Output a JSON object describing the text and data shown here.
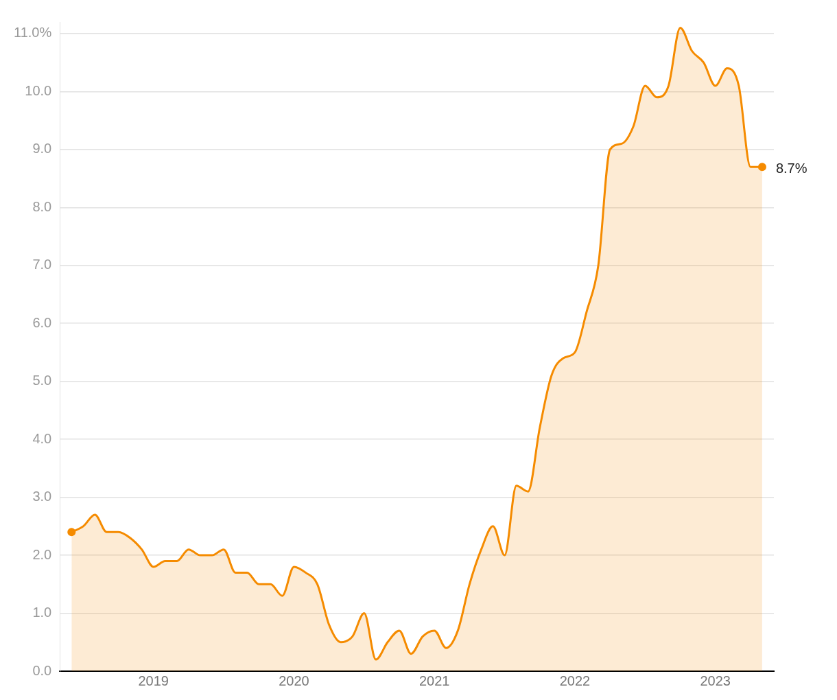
{
  "chart_data": {
    "type": "area",
    "x": [
      "2018-06",
      "2018-07",
      "2018-08",
      "2018-09",
      "2018-10",
      "2018-11",
      "2018-12",
      "2019-01",
      "2019-02",
      "2019-03",
      "2019-04",
      "2019-05",
      "2019-06",
      "2019-07",
      "2019-08",
      "2019-09",
      "2019-10",
      "2019-11",
      "2019-12",
      "2020-01",
      "2020-02",
      "2020-03",
      "2020-04",
      "2020-05",
      "2020-06",
      "2020-07",
      "2020-08",
      "2020-09",
      "2020-10",
      "2020-11",
      "2020-12",
      "2021-01",
      "2021-02",
      "2021-03",
      "2021-04",
      "2021-05",
      "2021-06",
      "2021-07",
      "2021-08",
      "2021-09",
      "2021-10",
      "2021-11",
      "2021-12",
      "2022-01",
      "2022-02",
      "2022-03",
      "2022-04",
      "2022-05",
      "2022-06",
      "2022-07",
      "2022-08",
      "2022-09",
      "2022-10",
      "2022-11",
      "2022-12",
      "2023-01",
      "2023-02",
      "2023-03",
      "2023-04",
      "2023-05"
    ],
    "series": [
      {
        "color": "#f58b00",
        "values": [
          2.4,
          2.5,
          2.7,
          2.4,
          2.4,
          2.3,
          2.1,
          1.8,
          1.9,
          1.9,
          2.1,
          2.0,
          2.0,
          2.1,
          1.7,
          1.7,
          1.5,
          1.5,
          1.3,
          1.8,
          1.7,
          1.5,
          0.8,
          0.5,
          0.6,
          1.0,
          0.2,
          0.5,
          0.7,
          0.3,
          0.6,
          0.7,
          0.4,
          0.7,
          1.5,
          2.1,
          2.5,
          2.0,
          3.2,
          3.1,
          4.2,
          5.1,
          5.4,
          5.5,
          6.2,
          7.0,
          9.0,
          9.1,
          9.4,
          10.1,
          9.9,
          10.1,
          11.1,
          10.7,
          10.5,
          10.1,
          10.4,
          10.1,
          8.7,
          8.7
        ]
      }
    ],
    "xlim": [
      "2018-05",
      "2023-06"
    ],
    "xticks": [
      "2019",
      "2020",
      "2021",
      "2022",
      "2023"
    ],
    "ylim": [
      0,
      11.2
    ],
    "yticks": [
      {
        "value": 0,
        "label": "0.0"
      },
      {
        "value": 1,
        "label": "1.0"
      },
      {
        "value": 2,
        "label": "2.0"
      },
      {
        "value": 3,
        "label": "3.0"
      },
      {
        "value": 4,
        "label": "4.0"
      },
      {
        "value": 5,
        "label": "5.0"
      },
      {
        "value": 6,
        "label": "6.0"
      },
      {
        "value": 7,
        "label": "7.0"
      },
      {
        "value": 8,
        "label": "8.0"
      },
      {
        "value": 9,
        "label": "9.0"
      },
      {
        "value": 10,
        "label": "10.0"
      },
      {
        "value": 11,
        "label": "11.0%"
      }
    ],
    "grid": "y",
    "annotations": [
      {
        "text": "8.7%",
        "x": "2023-05",
        "y": 8.7
      }
    ]
  }
}
